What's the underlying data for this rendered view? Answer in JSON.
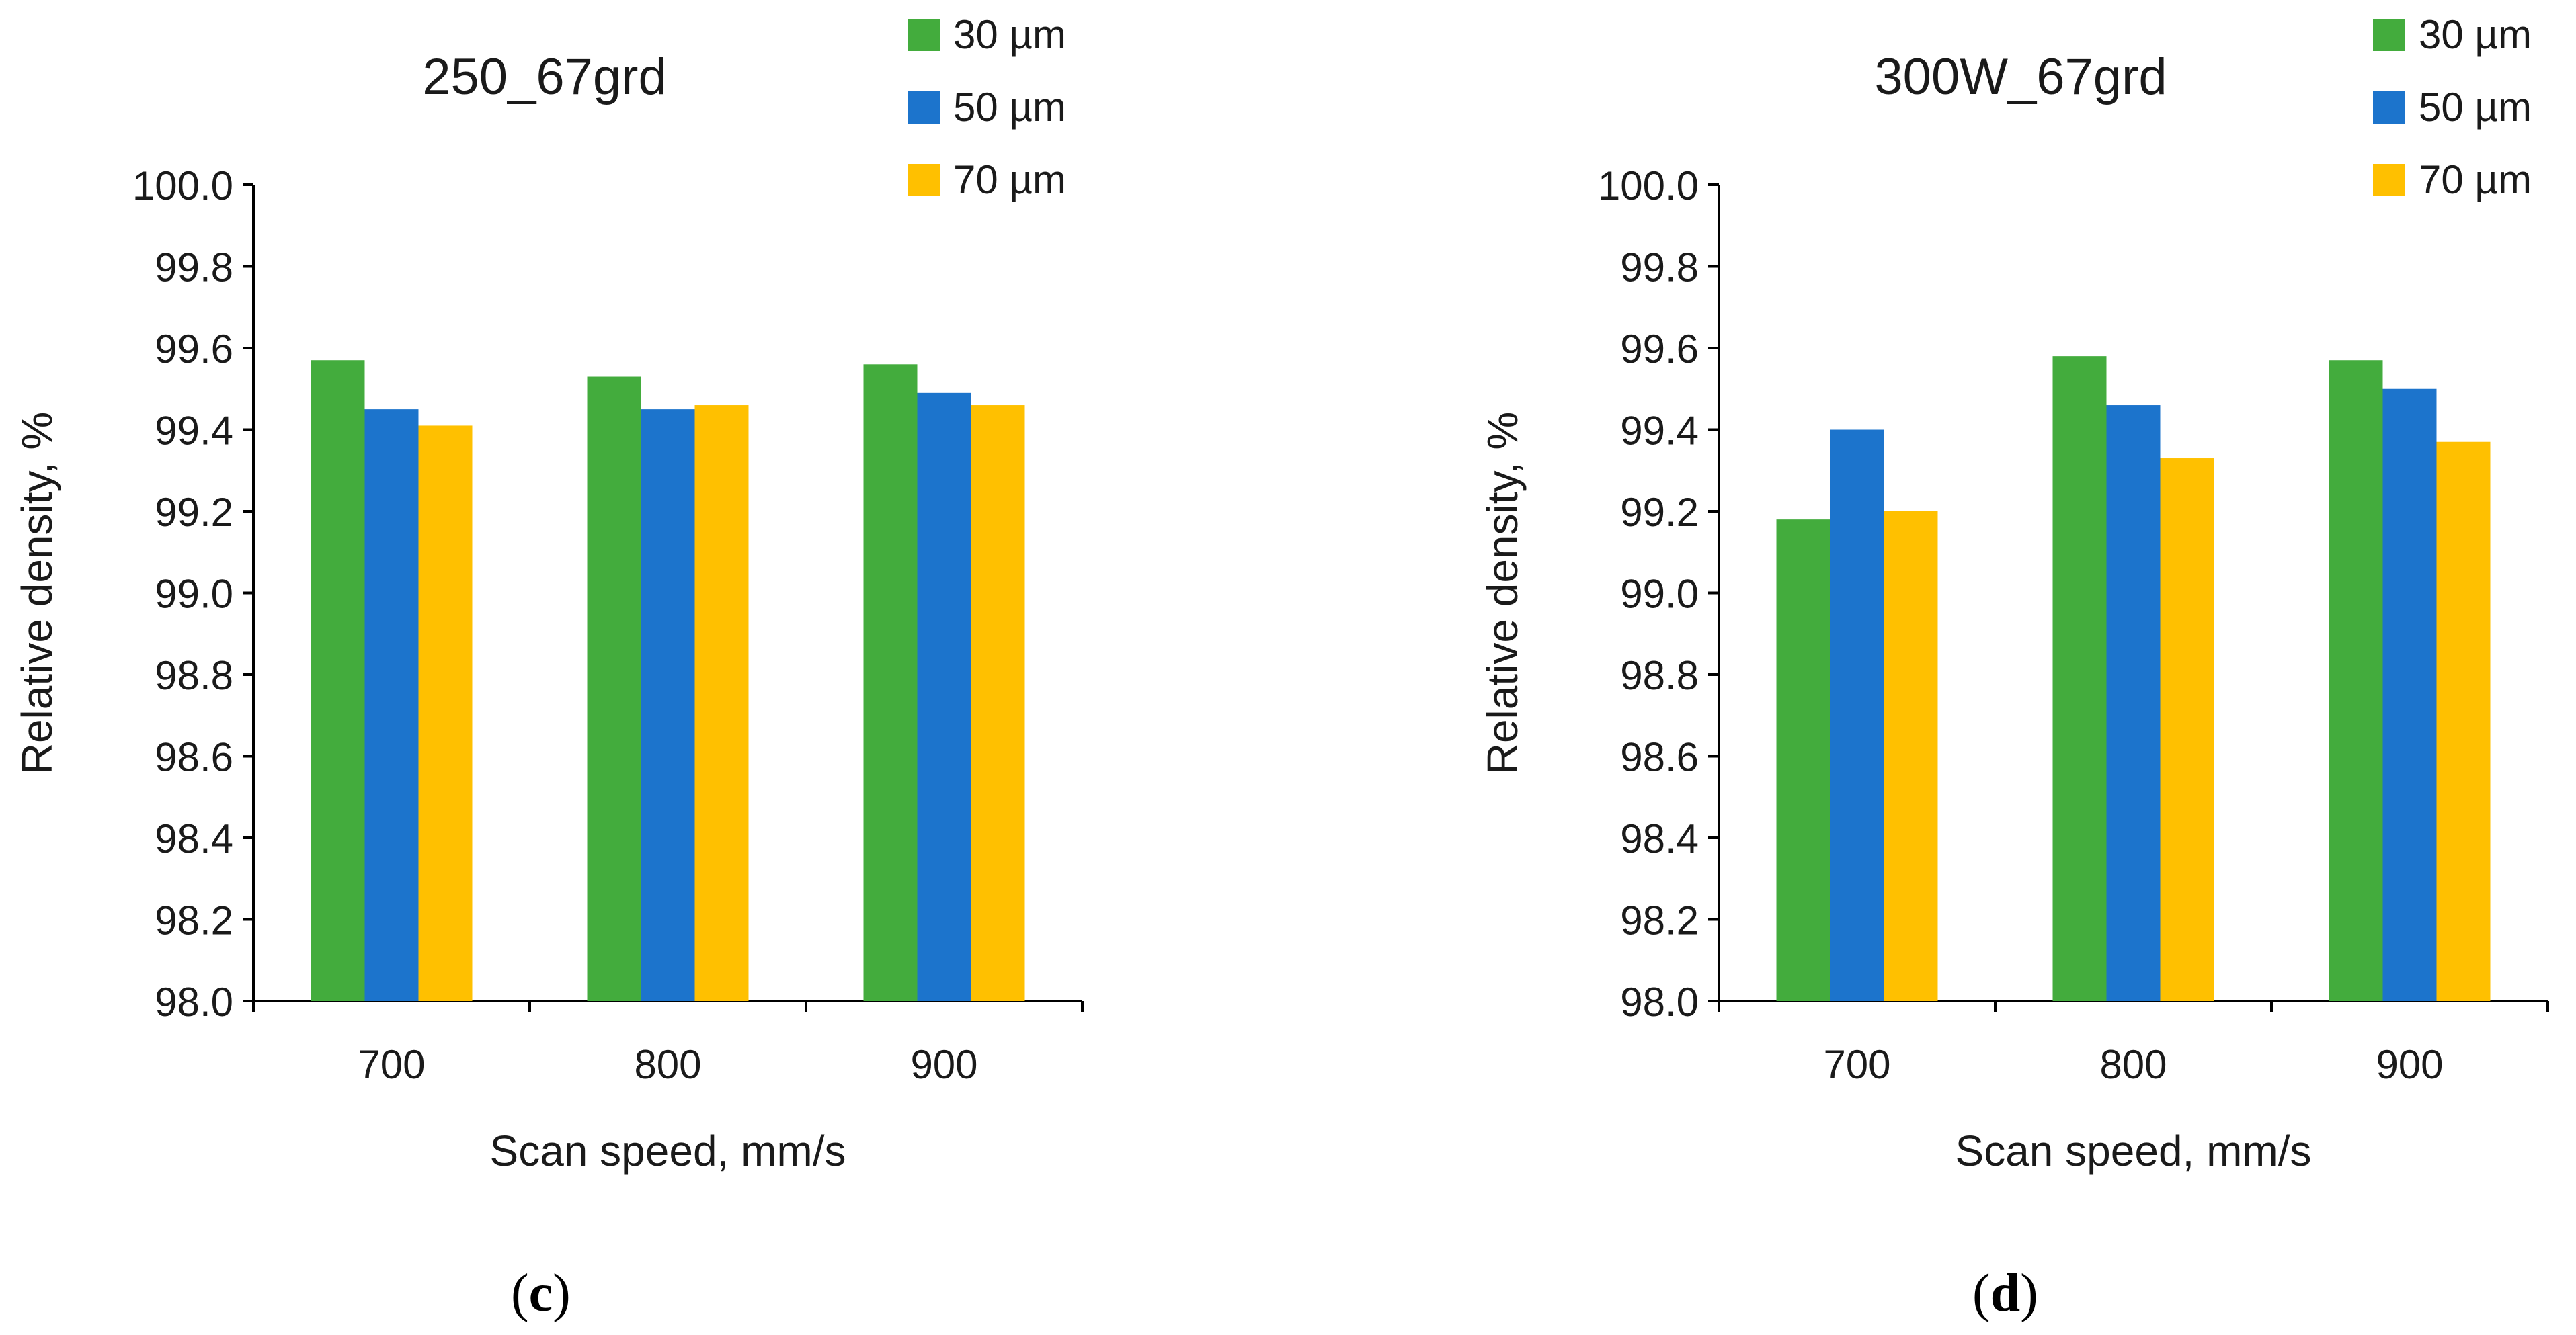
{
  "chart_data": [
    {
      "type": "bar",
      "panel": "c",
      "title": "250_67grd",
      "xlabel": "Scan speed, mm/s",
      "ylabel": "Relative density, %",
      "categories": [
        "700",
        "800",
        "900"
      ],
      "ylim": [
        98.0,
        100.0
      ],
      "yticks": [
        "98.0",
        "98.2",
        "98.4",
        "98.6",
        "98.8",
        "99.0",
        "99.2",
        "99.4",
        "99.6",
        "99.8",
        "100.0"
      ],
      "grid": false,
      "legend": "top-right",
      "series": [
        {
          "name": "30 µm",
          "color": "#43ac3d",
          "values": [
            99.57,
            99.53,
            99.56
          ]
        },
        {
          "name": "50 µm",
          "color": "#1c74cc",
          "values": [
            99.45,
            99.45,
            99.49
          ]
        },
        {
          "name": "70 µm",
          "color": "#ffc000",
          "values": [
            99.41,
            99.46,
            99.46
          ]
        }
      ]
    },
    {
      "type": "bar",
      "panel": "d",
      "title": "300W_67grd",
      "xlabel": "Scan speed, mm/s",
      "ylabel": "Relative density, %",
      "categories": [
        "700",
        "800",
        "900"
      ],
      "ylim": [
        98.0,
        100.0
      ],
      "yticks": [
        "98.0",
        "98.2",
        "98.4",
        "98.6",
        "98.8",
        "99.0",
        "99.2",
        "99.4",
        "99.6",
        "99.8",
        "100.0"
      ],
      "grid": false,
      "legend": "top-right",
      "series": [
        {
          "name": "30 µm",
          "color": "#43ac3d",
          "values": [
            99.18,
            99.58,
            99.57
          ]
        },
        {
          "name": "50 µm",
          "color": "#1c74cc",
          "values": [
            99.4,
            99.46,
            99.5
          ]
        },
        {
          "name": "70 µm",
          "color": "#ffc000",
          "values": [
            99.2,
            99.33,
            99.37
          ]
        }
      ]
    }
  ],
  "panel_labels": [
    "c",
    "d"
  ]
}
